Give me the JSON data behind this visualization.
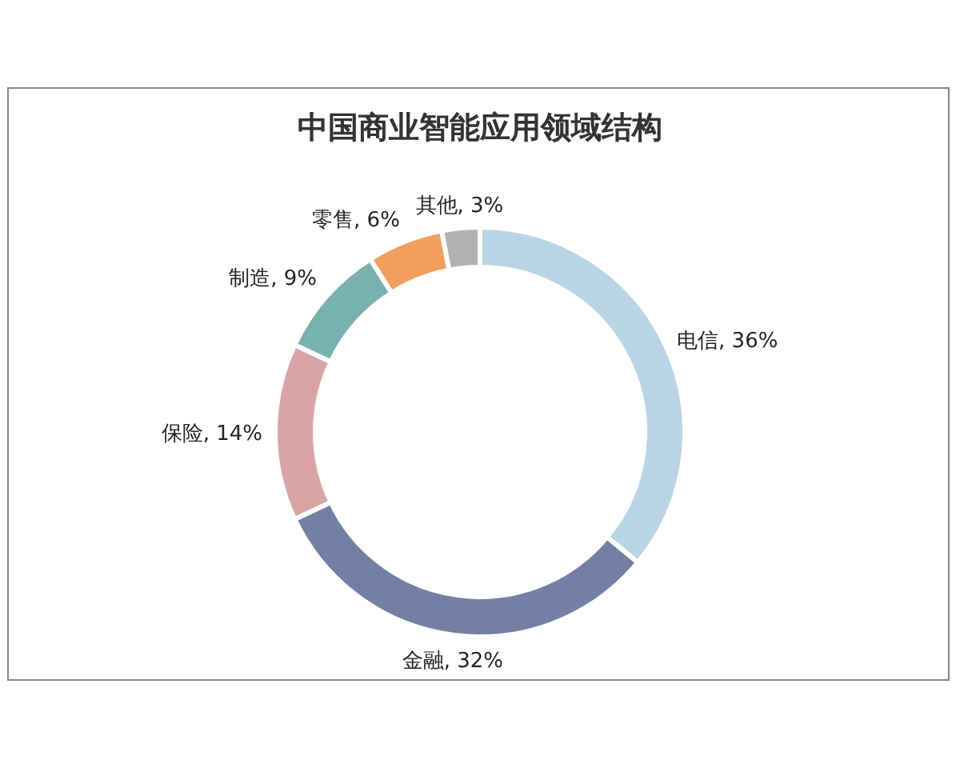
{
  "chart_data": {
    "type": "donut",
    "title": "中国商业智能应用领域结构",
    "categories": [
      "电信",
      "金融",
      "保险",
      "制造",
      "零售",
      "其他"
    ],
    "values": [
      36,
      32,
      14,
      9,
      6,
      3
    ],
    "value_labels": [
      "36%",
      "32%",
      "14%",
      "9%",
      "6%",
      "3%"
    ],
    "colors": [
      "#b9d5e4",
      "#737fa3",
      "#d8a4a4",
      "#79b1b1",
      "#f0a05c",
      "#b2b2b2"
    ]
  }
}
